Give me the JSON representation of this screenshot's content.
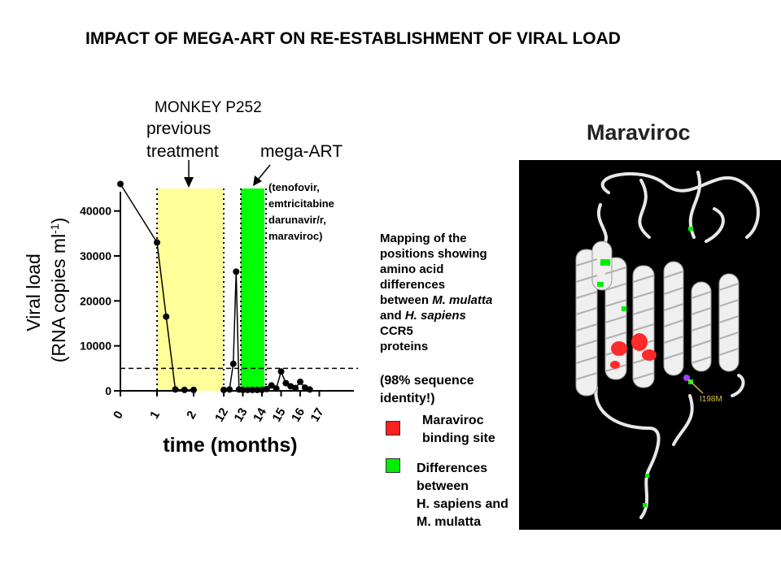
{
  "slide": {
    "title": "IMPACT OF MEGA-ART ON RE-ESTABLISHMENT OF VIRAL LOAD"
  },
  "chart_data": {
    "type": "line",
    "title": "MONKEY P252",
    "xlabel": "time (months)",
    "ylabel": "Viral load",
    "ylabel_units_prefix": "(RNA copies ml",
    "ylabel_units_sup": "-1",
    "ylabel_units_suffix": ")",
    "ylim": [
      0,
      45000
    ],
    "y_ticks": [
      "0",
      "10000",
      "20000",
      "30000",
      "40000"
    ],
    "y_tick_values": [
      0,
      10000,
      20000,
      30000,
      40000
    ],
    "x_ticks": [
      "0",
      "1",
      "2",
      "12",
      "13",
      "14",
      "15",
      "16",
      "17"
    ],
    "threshold": 5000,
    "series": [
      {
        "points": [
          [
            0,
            46000
          ],
          [
            1,
            33000
          ],
          [
            1.25,
            16500
          ],
          [
            1.5,
            300
          ],
          [
            1.75,
            200
          ],
          [
            2,
            200
          ],
          [
            12,
            200
          ],
          [
            12.3,
            300
          ],
          [
            12.5,
            6000
          ],
          [
            12.65,
            26500
          ],
          [
            12.8,
            300
          ],
          [
            13,
            200
          ],
          [
            13.25,
            200
          ],
          [
            13.5,
            200
          ],
          [
            13.75,
            200
          ],
          [
            14,
            200
          ],
          [
            14.25,
            400
          ],
          [
            14.5,
            1200
          ],
          [
            14.75,
            500
          ],
          [
            15,
            4300
          ],
          [
            15.25,
            1700
          ],
          [
            15.5,
            1000
          ],
          [
            15.75,
            600
          ],
          [
            16,
            2000
          ],
          [
            16.25,
            700
          ],
          [
            16.5,
            300
          ]
        ]
      }
    ],
    "annotations": {
      "previous_treatment": {
        "label_line1": "previous",
        "label_line2": "treatment",
        "x_range": [
          1,
          2
        ],
        "color": "#ffff99"
      },
      "mega_art": {
        "label": "mega-ART",
        "x_range": [
          12.75,
          13.25
        ],
        "color": "#00ff00"
      },
      "drug_list": [
        "(tenofovir,",
        "emtricitabine",
        "darunavir/r,",
        "maraviroc)"
      ]
    }
  },
  "mapping_text": {
    "lines": [
      {
        "parts": [
          {
            "t": "Mapping of the",
            "i": false
          }
        ]
      },
      {
        "parts": [
          {
            "t": "positions showing",
            "i": false
          }
        ]
      },
      {
        "parts": [
          {
            "t": "amino acid",
            "i": false
          }
        ]
      },
      {
        "parts": [
          {
            "t": "differences",
            "i": false
          }
        ]
      },
      {
        "parts": [
          {
            "t": "between ",
            "i": false
          },
          {
            "t": "M. mulatta",
            "i": true
          }
        ]
      },
      {
        "parts": [
          {
            "t": "and ",
            "i": false
          },
          {
            "t": "H. sapiens",
            "i": true
          }
        ]
      },
      {
        "parts": [
          {
            "t": "CCR5",
            "i": false
          }
        ]
      },
      {
        "parts": [
          {
            "t": "proteins",
            "i": false
          }
        ]
      }
    ],
    "identity_line1": "(98% sequence",
    "identity_line2": "identity!)"
  },
  "legend": [
    {
      "color": "#ff2020",
      "lines": [
        "Maraviroc",
        "binding site"
      ]
    },
    {
      "color": "#00ee00",
      "lines": [
        "Differences",
        "between",
        "H. sapiens and",
        "M. mulatta"
      ]
    }
  ],
  "structure": {
    "title": "Maraviroc",
    "mutation_label": "I198M",
    "background": "#000000",
    "ribbon_color": "#e8e8e8"
  }
}
